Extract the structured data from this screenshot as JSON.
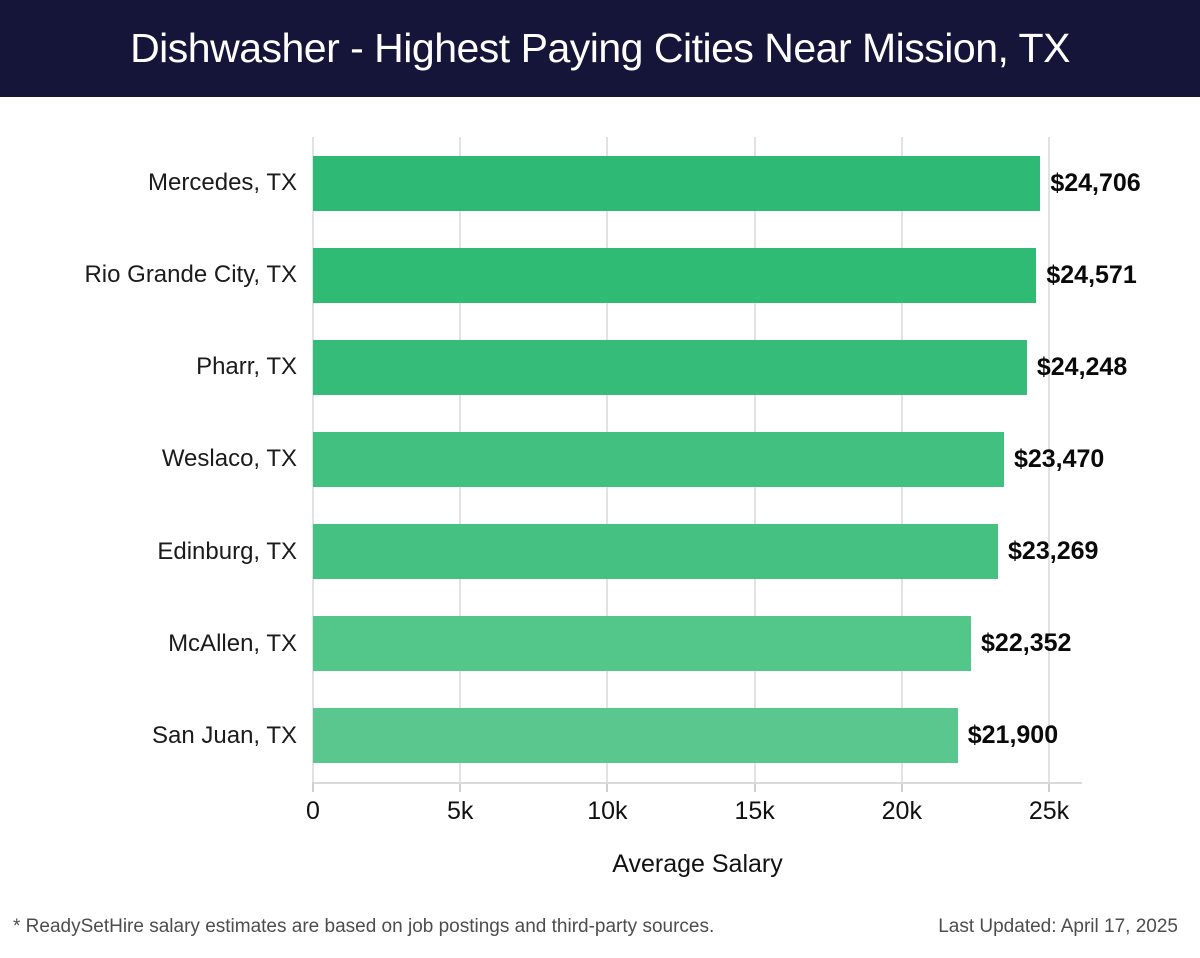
{
  "header": {
    "title": "Dishwasher - Highest Paying Cities Near Mission, TX",
    "background_color": "#15153a",
    "text_color": "#ffffff"
  },
  "chart_data": {
    "type": "bar",
    "orientation": "horizontal",
    "title": "Dishwasher - Highest Paying Cities Near Mission, TX",
    "xlabel": "Average Salary",
    "ylabel": "",
    "xlim": [
      0,
      26100
    ],
    "grid": true,
    "categories": [
      "Mercedes, TX",
      "Rio Grande City, TX",
      "Pharr, TX",
      "Weslaco, TX",
      "Edinburg, TX",
      "McAllen, TX",
      "San Juan, TX"
    ],
    "values": [
      24706,
      24571,
      24248,
      23470,
      23269,
      22352,
      21900
    ],
    "value_labels": [
      "$24,706",
      "$24,571",
      "$24,248",
      "$23,470",
      "$23,269",
      "$22,352",
      "$21,900"
    ],
    "bar_colors": [
      "#2eba74",
      "#30bb75",
      "#35bc78",
      "#41c080",
      "#45c181",
      "#53c68a",
      "#5ac88e"
    ],
    "x_ticks": [
      {
        "value": 0,
        "label": "0"
      },
      {
        "value": 5000,
        "label": "5k"
      },
      {
        "value": 10000,
        "label": "10k"
      },
      {
        "value": 15000,
        "label": "15k"
      },
      {
        "value": 20000,
        "label": "20k"
      },
      {
        "value": 25000,
        "label": "25k"
      }
    ],
    "legend": null
  },
  "footer": {
    "note": "* ReadySetHire salary estimates are based on job postings and third-party sources.",
    "last_updated": "Last Updated: April 17, 2025"
  }
}
